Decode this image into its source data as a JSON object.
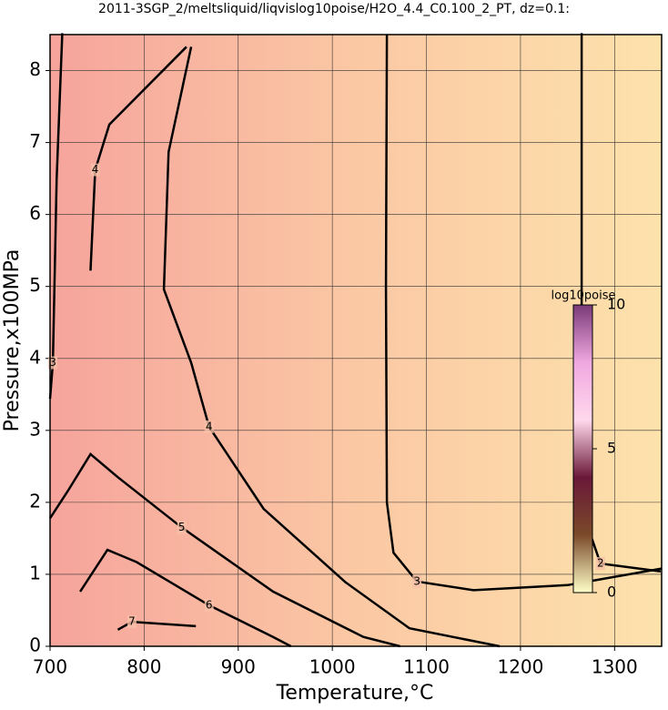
{
  "chart_data": {
    "type": "contour",
    "title": "2011-3SGP_2/meltsliquid/liqvislog10poise/H2O_4.4_C0.100_2_PT, dz=0.1:",
    "x_label": "Temperature,°C",
    "y_label": "Pressure,x100MPa",
    "xlim": [
      700,
      1350
    ],
    "ylim": [
      0,
      8.5
    ],
    "xticks": [
      700,
      800,
      900,
      1000,
      1100,
      1200,
      1300
    ],
    "yticks": [
      0,
      1,
      2,
      3,
      4,
      5,
      6,
      7,
      8
    ],
    "grid": true,
    "background_colors": [
      "#f6a49c",
      "#fbc8a4",
      "#fde2ac"
    ],
    "line_color": "#000000",
    "contours": [
      {
        "level": 3,
        "x": [
          713,
          707,
          703,
          700
        ],
        "y": [
          8.52,
          6.49,
          3.94,
          3.44
        ]
      },
      {
        "level": 4,
        "x": [
          845,
          763,
          748,
          743
        ],
        "y": [
          8.33,
          7.25,
          6.62,
          5.22
        ]
      },
      {
        "level": 4,
        "x": [
          850,
          826,
          821,
          850,
          869,
          927,
          1014,
          1082,
          1178
        ],
        "y": [
          8.33,
          6.87,
          4.96,
          3.94,
          3.05,
          1.91,
          0.89,
          0.25,
          0
        ]
      },
      {
        "level": 3,
        "x": [
          1058,
          1057,
          1058,
          1065,
          1090,
          1150,
          1250,
          1350
        ],
        "y": [
          8.5,
          5,
          2,
          1.3,
          0.9,
          0.78,
          0.85,
          1.08
        ]
      },
      {
        "level": 2,
        "x": [
          1265,
          1265,
          1285,
          1349
        ],
        "y": [
          8.52,
          1.91,
          1.15,
          1.04
        ]
      },
      {
        "level": 5,
        "x": [
          700,
          719,
          743,
          772,
          840,
          937,
          1033,
          1072
        ],
        "y": [
          1.78,
          2.16,
          2.67,
          2.35,
          1.65,
          0.76,
          0.13,
          0
        ]
      },
      {
        "level": 6,
        "x": [
          732,
          761,
          792,
          869,
          937,
          956
        ],
        "y": [
          0.76,
          1.34,
          1.17,
          0.57,
          0.13,
          0
        ]
      },
      {
        "level": 7,
        "x": [
          772,
          787,
          855
        ],
        "y": [
          0.23,
          0.34,
          0.28
        ]
      }
    ],
    "colorbar": {
      "label": "log10poise",
      "lim": [
        0,
        10
      ],
      "ticks": [
        0,
        5,
        10
      ],
      "colors": [
        "#ffffc8",
        "#7a4a2a",
        "#6a1838",
        "#ffd8ec",
        "#f0a8e0",
        "#7a3a78"
      ]
    }
  }
}
